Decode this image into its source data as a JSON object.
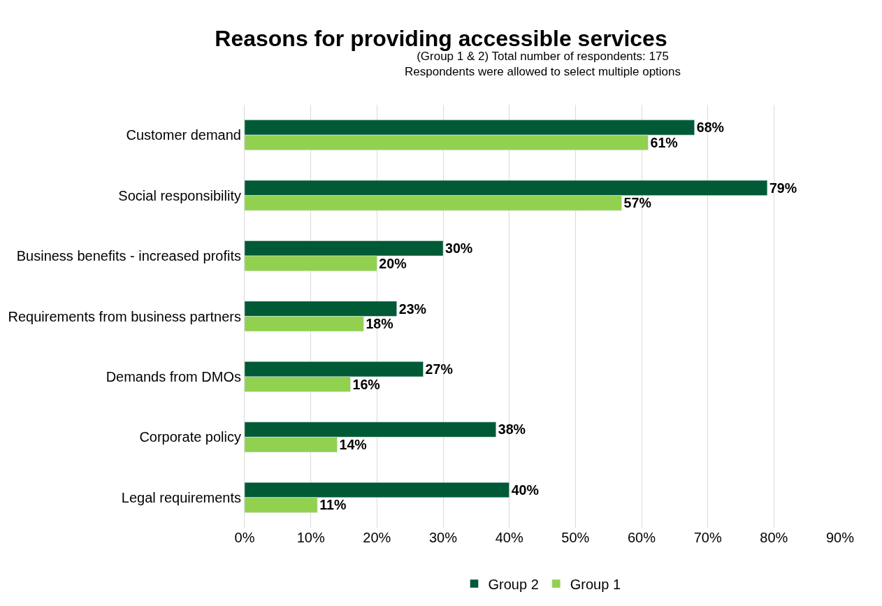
{
  "chart_data": {
    "type": "bar",
    "orientation": "horizontal",
    "title": "Reasons for providing accessible services",
    "subtitle": "(Group 1 & 2) Total number of respondents: 175\nRespondents were allowed to select multiple options",
    "categories": [
      "Customer demand",
      "Social responsibility",
      "Business benefits - increased profits",
      "Requirements from business partners",
      "Demands from DMOs",
      "Corporate policy",
      "Legal requirements"
    ],
    "series": [
      {
        "name": "Group 2",
        "color": "#005a36",
        "values": [
          68,
          79,
          30,
          23,
          27,
          38,
          40
        ],
        "value_labels": [
          "68%",
          "79%",
          "30%",
          "23%",
          "27%",
          "38%",
          "40%"
        ]
      },
      {
        "name": "Group 1",
        "color": "#92d050",
        "values": [
          61,
          57,
          20,
          18,
          16,
          14,
          11
        ],
        "value_labels": [
          "61%",
          "57%",
          "20%",
          "18%",
          "16%",
          "14%",
          "11%"
        ]
      }
    ],
    "xlim": [
      0,
      90
    ],
    "xticks": [
      {
        "value": 0,
        "label": "0%"
      },
      {
        "value": 10,
        "label": "10%"
      },
      {
        "value": 20,
        "label": "20%"
      },
      {
        "value": 30,
        "label": "30%"
      },
      {
        "value": 40,
        "label": "40%"
      },
      {
        "value": 50,
        "label": "50%"
      },
      {
        "value": 60,
        "label": "60%"
      },
      {
        "value": 70,
        "label": "70%"
      },
      {
        "value": 80,
        "label": "80%"
      },
      {
        "value": 90,
        "label": "90%"
      }
    ],
    "grid": "x",
    "legend": "bottom"
  }
}
